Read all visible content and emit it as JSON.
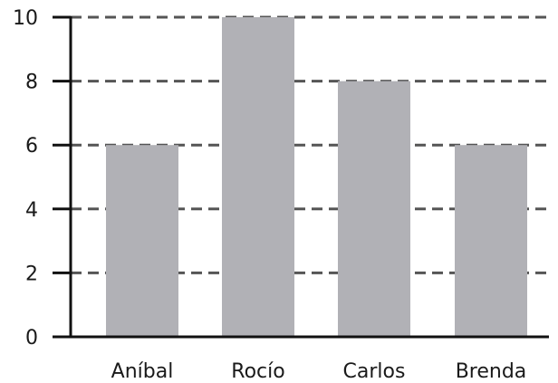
{
  "chart_data": {
    "type": "bar",
    "categories": [
      "Aníbal",
      "Rocío",
      "Carlos",
      "Brenda"
    ],
    "values": [
      6,
      10,
      8,
      6
    ],
    "ylim": [
      0,
      10
    ],
    "yticks": [
      0,
      2,
      4,
      6,
      8,
      10
    ],
    "ytick_labels": [
      "0",
      "2",
      "4",
      "6",
      "8",
      "10"
    ],
    "grid": "dashed horizontal lines at each y tick",
    "colors": {
      "bar": "#b1b1b6",
      "grid": "#555555",
      "axis": "#111111"
    }
  }
}
